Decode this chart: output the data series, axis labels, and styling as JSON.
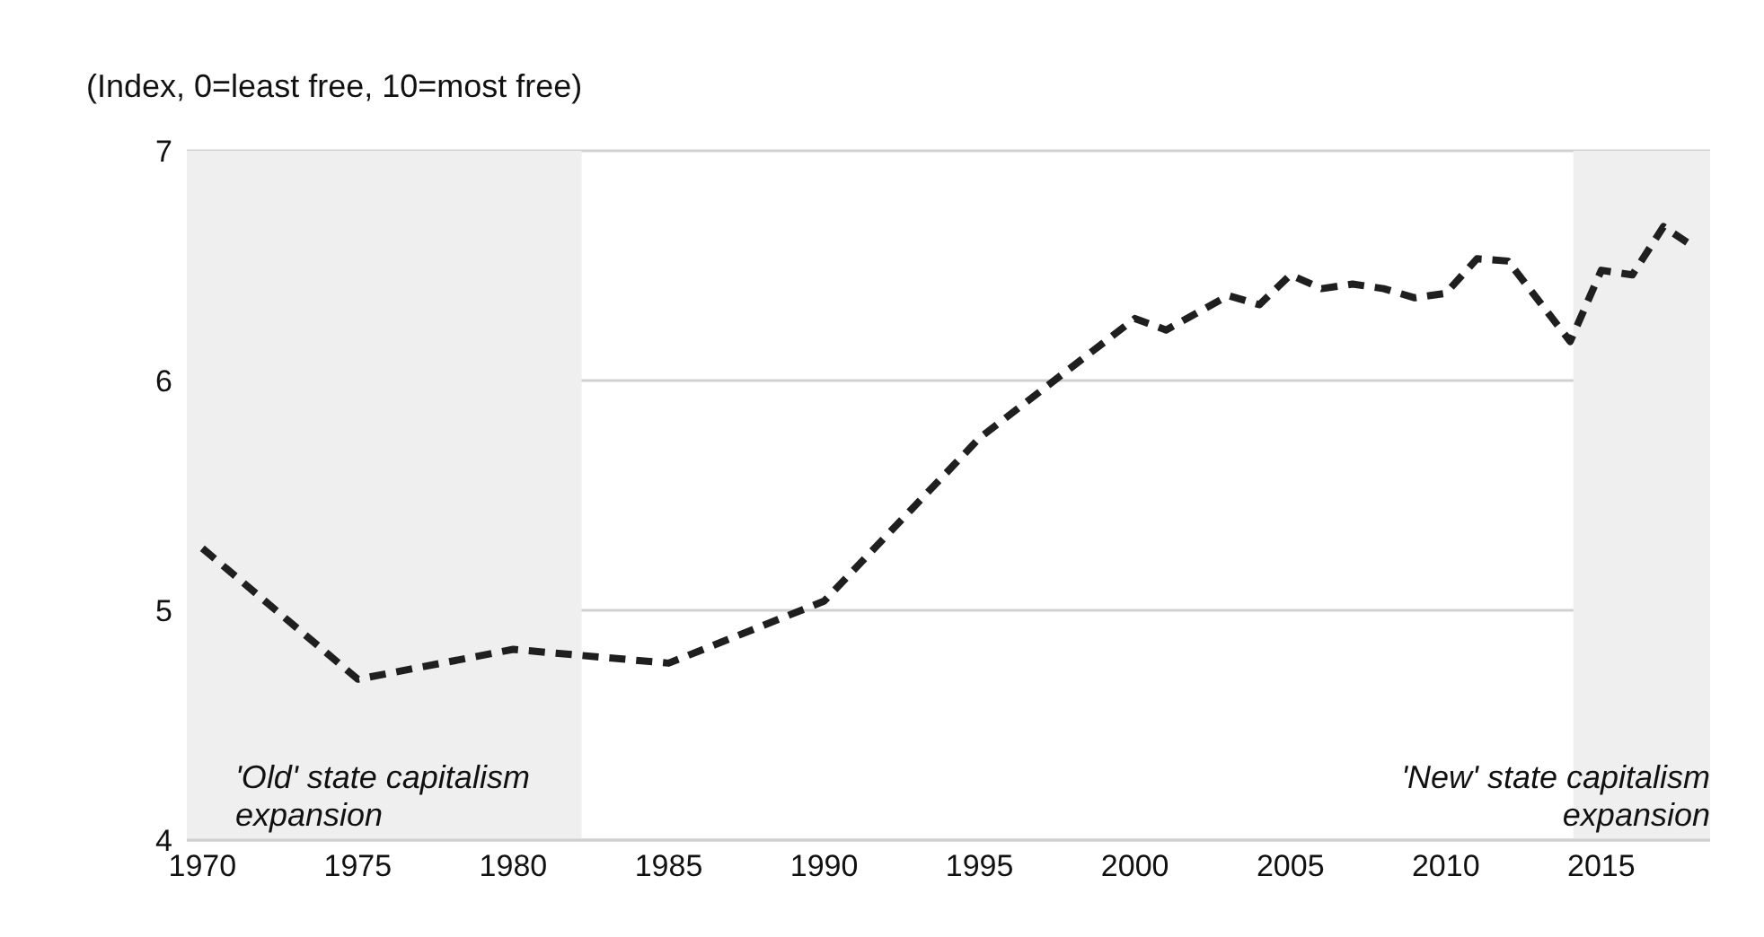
{
  "chart_data": {
    "type": "line",
    "ylabel": "(Index, 0=least free, 10=most free)",
    "x": [
      1970,
      1975,
      1980,
      1985,
      1990,
      1995,
      2000,
      2001,
      2003,
      2004,
      2005,
      2006,
      2007,
      2008,
      2009,
      2010,
      2011,
      2012,
      2014,
      2015,
      2016,
      2017,
      2018
    ],
    "series": [
      {
        "color": "#1f1f1f",
        "values": [
          5.27,
          4.7,
          4.83,
          4.77,
          5.04,
          5.75,
          6.27,
          6.22,
          6.37,
          6.33,
          6.46,
          6.4,
          6.42,
          6.4,
          6.36,
          6.38,
          6.53,
          6.52,
          6.17,
          6.48,
          6.46,
          6.67,
          6.58
        ]
      }
    ],
    "xlim": [
      1969.5,
      2018.5
    ],
    "xticks": [
      1970,
      1975,
      1980,
      1985,
      1990,
      1995,
      2000,
      2005,
      2010,
      2015
    ],
    "ylim": [
      4,
      7
    ],
    "yticks": [
      4,
      5,
      6,
      7
    ],
    "grid": "y",
    "line_style": "dashed",
    "marker": "none",
    "bands": [
      {
        "axis": "x",
        "from": 1969.5,
        "to": 1982.2,
        "label": "'Old' state capitalism expansion",
        "color": "#efefef"
      },
      {
        "axis": "x",
        "from": 2014.1,
        "to": 2018.5,
        "label": "'New' state capitalism expansion",
        "color": "#efefef"
      }
    ]
  }
}
